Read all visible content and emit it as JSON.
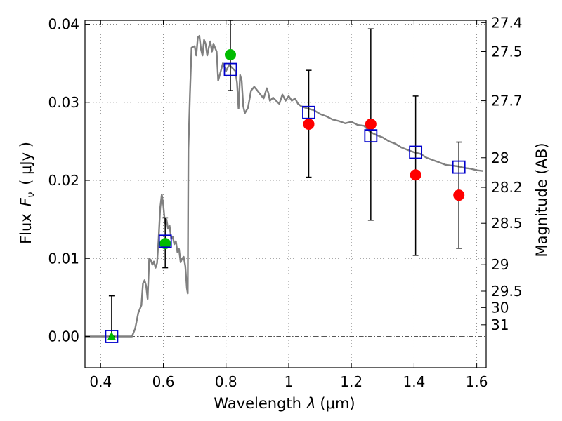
{
  "chart_data": {
    "type": "scatter",
    "title": "",
    "xlabel": "Wavelength",
    "xlabel_symbol": "λ",
    "xlabel_unit": "(μm)",
    "ylabel": "Flux",
    "ylabel_symbol_main": "F",
    "ylabel_symbol_sub": "ν",
    "ylabel_unit": "( μJy )",
    "y2label": "Magnitude (AB)",
    "xlim": [
      0.35,
      1.63
    ],
    "ylim": [
      -0.004,
      0.0405
    ],
    "grid": true,
    "x_ticks": [
      0.4,
      0.6,
      0.8,
      1.0,
      1.2,
      1.4,
      1.6
    ],
    "x_tick_labels": [
      "0.4",
      "0.6",
      "0.8",
      "1",
      "1.2",
      "1.4",
      "1.6"
    ],
    "y_ticks": [
      0.0,
      0.01,
      0.02,
      0.03,
      0.04
    ],
    "y_tick_labels": [
      "0.00",
      "0.01",
      "0.02",
      "0.03",
      "0.04"
    ],
    "mag_ticks": [
      {
        "label": "27.4",
        "flux": 0.0402
      },
      {
        "label": "27.5",
        "flux": 0.0365
      },
      {
        "label": "27.7",
        "flux": 0.0302
      },
      {
        "label": "28",
        "flux": 0.0229
      },
      {
        "label": "28.2",
        "flux": 0.0191
      },
      {
        "label": "28.5",
        "flux": 0.0145
      },
      {
        "label": "29",
        "flux": 0.0092
      },
      {
        "label": "29.5",
        "flux": 0.0058
      },
      {
        "label": "30",
        "flux": 0.0037
      },
      {
        "label": "31",
        "flux": 0.0015
      }
    ],
    "series": [
      {
        "name": "model-sed",
        "kind": "line",
        "color": "#808080",
        "x": [
          0.35,
          0.5,
          0.51,
          0.52,
          0.53,
          0.535,
          0.54,
          0.545,
          0.55,
          0.555,
          0.56,
          0.565,
          0.57,
          0.575,
          0.58,
          0.585,
          0.59,
          0.595,
          0.6,
          0.605,
          0.61,
          0.615,
          0.62,
          0.625,
          0.63,
          0.635,
          0.64,
          0.645,
          0.65,
          0.655,
          0.66,
          0.665,
          0.67,
          0.675,
          0.678,
          0.68,
          0.685,
          0.69,
          0.7,
          0.705,
          0.71,
          0.715,
          0.72,
          0.725,
          0.73,
          0.735,
          0.74,
          0.745,
          0.75,
          0.755,
          0.76,
          0.765,
          0.77,
          0.775,
          0.78,
          0.79,
          0.8,
          0.81,
          0.82,
          0.83,
          0.835,
          0.84,
          0.845,
          0.85,
          0.855,
          0.86,
          0.87,
          0.88,
          0.89,
          0.9,
          0.91,
          0.92,
          0.93,
          0.935,
          0.94,
          0.95,
          0.96,
          0.97,
          0.98,
          0.99,
          1.0,
          1.01,
          1.02,
          1.03,
          1.04,
          1.06,
          1.08,
          1.1,
          1.12,
          1.14,
          1.16,
          1.18,
          1.2,
          1.22,
          1.24,
          1.26,
          1.28,
          1.3,
          1.32,
          1.34,
          1.36,
          1.38,
          1.4,
          1.42,
          1.44,
          1.46,
          1.48,
          1.5,
          1.52,
          1.54,
          1.56,
          1.58,
          1.6,
          1.62
        ],
        "y": [
          0.0,
          0.0,
          0.001,
          0.003,
          0.004,
          0.0068,
          0.0072,
          0.0065,
          0.0048,
          0.01,
          0.0098,
          0.0092,
          0.0096,
          0.0088,
          0.0094,
          0.0125,
          0.0165,
          0.0182,
          0.0168,
          0.0145,
          0.015,
          0.0138,
          0.0142,
          0.0125,
          0.0128,
          0.0118,
          0.0122,
          0.0108,
          0.0112,
          0.0095,
          0.01,
          0.0102,
          0.009,
          0.0062,
          0.0055,
          0.024,
          0.031,
          0.037,
          0.0372,
          0.036,
          0.0383,
          0.0385,
          0.0368,
          0.036,
          0.038,
          0.0375,
          0.036,
          0.037,
          0.0378,
          0.0365,
          0.0375,
          0.037,
          0.0365,
          0.0328,
          0.0335,
          0.035,
          0.034,
          0.0348,
          0.0344,
          0.034,
          0.0325,
          0.0292,
          0.0335,
          0.0328,
          0.0295,
          0.0286,
          0.0293,
          0.0315,
          0.032,
          0.0315,
          0.031,
          0.0305,
          0.0318,
          0.0312,
          0.0302,
          0.0306,
          0.0302,
          0.0298,
          0.031,
          0.0302,
          0.0308,
          0.0302,
          0.0305,
          0.0298,
          0.0295,
          0.0292,
          0.029,
          0.0285,
          0.0282,
          0.0278,
          0.0276,
          0.0273,
          0.0275,
          0.0271,
          0.027,
          0.0262,
          0.0258,
          0.0255,
          0.025,
          0.0247,
          0.0242,
          0.0239,
          0.0236,
          0.0234,
          0.0229,
          0.0226,
          0.0223,
          0.022,
          0.0219,
          0.0218,
          0.0216,
          0.0215,
          0.0213,
          0.0212
        ]
      },
      {
        "name": "model-bandpass",
        "kind": "open-square",
        "color": "#0000cc",
        "x": [
          0.435,
          0.606,
          0.814,
          1.064,
          1.262,
          1.405,
          1.543
        ],
        "y": [
          0.0,
          0.0122,
          0.0342,
          0.0287,
          0.0257,
          0.0236,
          0.0217
        ]
      },
      {
        "name": "hst-optical",
        "kind": "circle",
        "color": "#00bb00",
        "x": [
          0.606,
          0.814
        ],
        "y": [
          0.0119,
          0.0361
        ]
      },
      {
        "name": "hst-nir",
        "kind": "circle",
        "color": "#ff0000",
        "x": [
          1.064,
          1.262,
          1.405,
          1.543
        ],
        "y": [
          0.0272,
          0.0272,
          0.0207,
          0.0181
        ]
      },
      {
        "name": "upper-limit",
        "kind": "triangle",
        "color": "#00bb00",
        "x": [
          0.435
        ],
        "y": [
          0.0
        ]
      }
    ],
    "error_bars": [
      {
        "x": 0.435,
        "low": 0.0,
        "high": 0.0052
      },
      {
        "x": 0.606,
        "low": 0.0088,
        "high": 0.0152
      },
      {
        "x": 0.814,
        "low": 0.0315,
        "high": 0.0405
      },
      {
        "x": 1.064,
        "low": 0.0204,
        "high": 0.0341
      },
      {
        "x": 1.262,
        "low": 0.0149,
        "high": 0.0394
      },
      {
        "x": 1.405,
        "low": 0.0104,
        "high": 0.0308
      },
      {
        "x": 1.543,
        "low": 0.0113,
        "high": 0.0249
      }
    ]
  }
}
